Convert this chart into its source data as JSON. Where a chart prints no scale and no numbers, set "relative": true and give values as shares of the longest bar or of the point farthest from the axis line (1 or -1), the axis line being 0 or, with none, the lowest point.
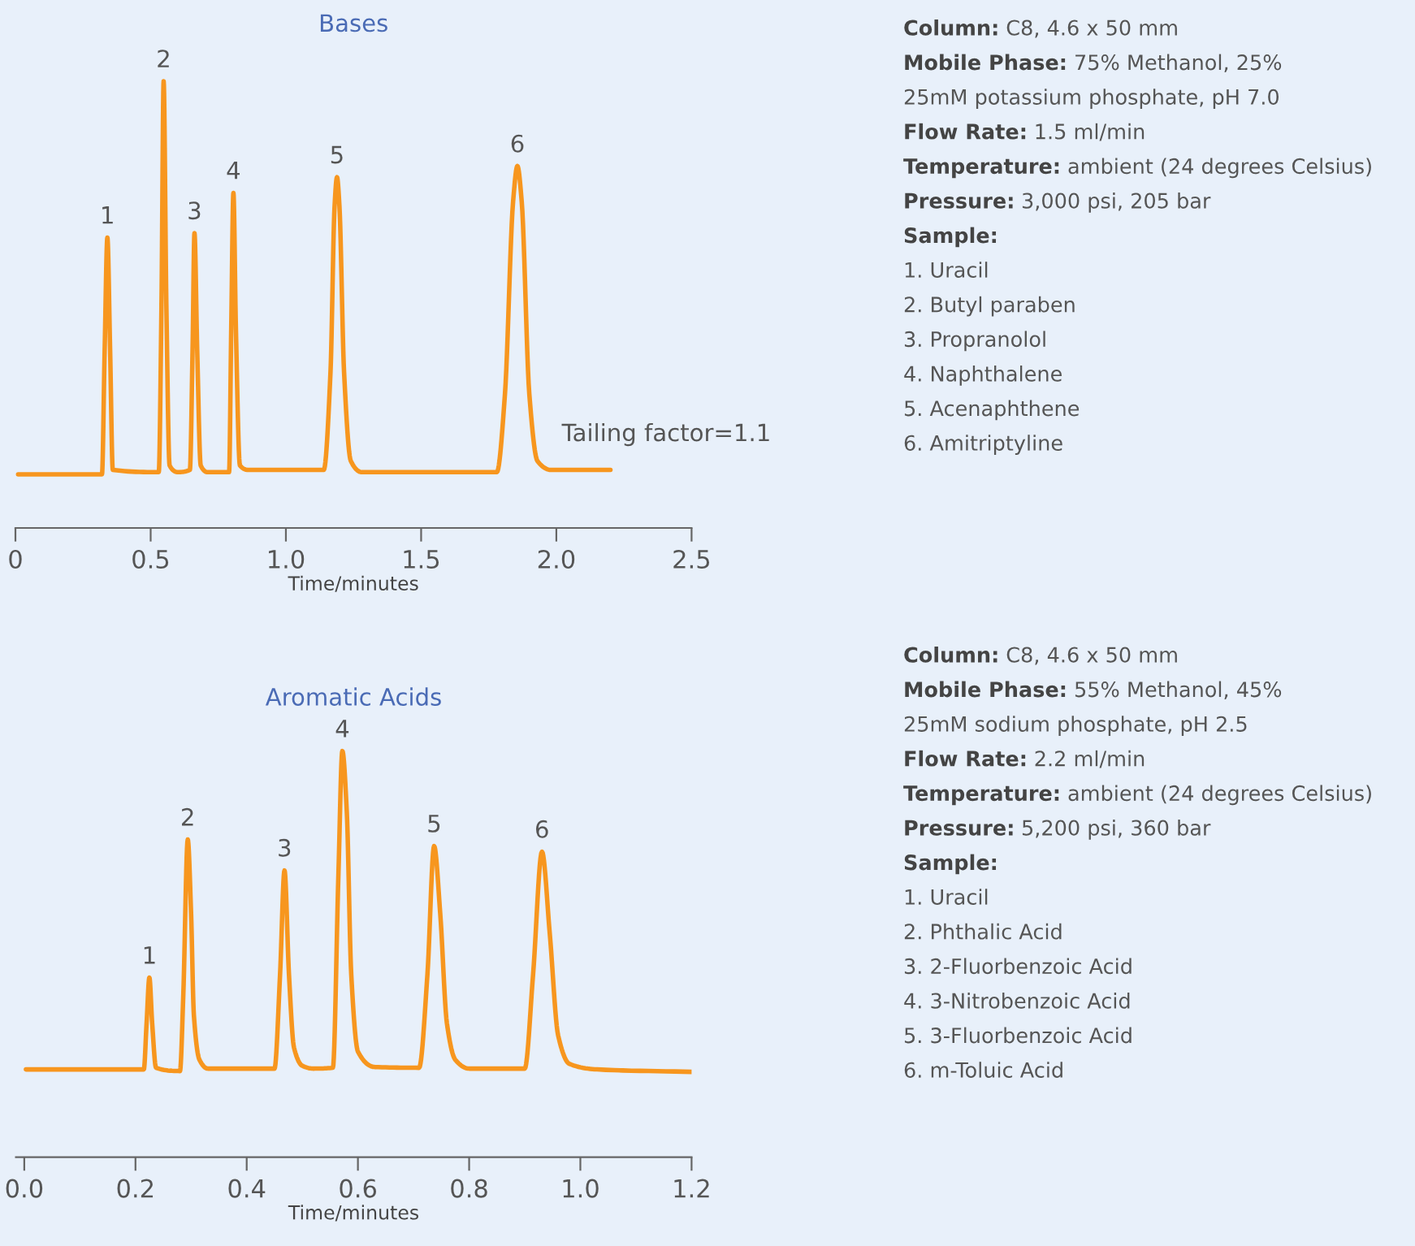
{
  "chart_data": [
    {
      "type": "line",
      "title": "Bases",
      "xlabel": "Time/minutes",
      "relative": true,
      "xlim": [
        0,
        2.5
      ],
      "xticks": [
        {
          "value": 0,
          "label": "0"
        },
        {
          "value": 0.5,
          "label": "0.5"
        },
        {
          "value": 1.0,
          "label": "1.0"
        },
        {
          "value": 1.5,
          "label": "1.5"
        },
        {
          "value": 2.0,
          "label": "2.0"
        },
        {
          "value": 2.5,
          "label": "2.5"
        }
      ],
      "series": [
        {
          "color": "#f7961e",
          "x": [
            0.01,
            0.32,
            0.33,
            0.34,
            0.35,
            0.36,
            0.53,
            0.54,
            0.548,
            0.558,
            0.57,
            0.6,
            0.645,
            0.655,
            0.662,
            0.672,
            0.685,
            0.71,
            0.79,
            0.798,
            0.806,
            0.815,
            0.83,
            0.86,
            1.14,
            1.165,
            1.18,
            1.189,
            1.198,
            1.215,
            1.24,
            1.28,
            1.78,
            1.81,
            1.84,
            1.856,
            1.872,
            1.9,
            1.93,
            1.98,
            2.2
          ],
          "values": [
            0.12,
            0.12,
            0.4,
            0.65,
            0.4,
            0.13,
            0.125,
            0.5,
            1.0,
            0.5,
            0.14,
            0.125,
            0.13,
            0.4,
            0.66,
            0.4,
            0.14,
            0.125,
            0.125,
            0.45,
            0.75,
            0.45,
            0.14,
            0.13,
            0.13,
            0.35,
            0.72,
            0.785,
            0.72,
            0.35,
            0.15,
            0.125,
            0.125,
            0.3,
            0.73,
            0.81,
            0.73,
            0.3,
            0.15,
            0.13,
            0.13
          ]
        }
      ],
      "annotations": [
        {
          "text": "1",
          "x": 0.34,
          "y": 0.65
        },
        {
          "text": "2",
          "x": 0.548,
          "y": 1.0
        },
        {
          "text": "3",
          "x": 0.662,
          "y": 0.66
        },
        {
          "text": "4",
          "x": 0.806,
          "y": 0.75
        },
        {
          "text": "5",
          "x": 1.189,
          "y": 0.785
        },
        {
          "text": "6",
          "x": 1.856,
          "y": 0.81
        },
        "Tailing factor=1.1"
      ]
    },
    {
      "type": "other",
      "annotations": [
        "Column: C8, 4.6 x 50 mm",
        "Mobile Phase: 75% Methanol, 25%",
        "25mM potassium phosphate, pH 7.0",
        "Flow Rate: 1.5 ml/min",
        "Temperature: ambient (24 degrees Celsius)",
        "Pressure: 3,000 psi, 205 bar",
        "Sample:",
        "1. Uracil",
        "2. Butyl paraben",
        "3. Propranolol",
        "4. Naphthalene",
        "5. Acenaphthene",
        "6. Amitriptyline"
      ]
    },
    {
      "type": "line",
      "title": "Aromatic Acids",
      "xlabel": "Time/minutes",
      "relative": true,
      "xlim": [
        -0.015,
        1.2
      ],
      "xticks": [
        {
          "value": 0.0,
          "label": "0.0"
        },
        {
          "value": 0.2,
          "label": "0.2"
        },
        {
          "value": 0.4,
          "label": "0.4"
        },
        {
          "value": 0.6,
          "label": "0.6"
        },
        {
          "value": 0.8,
          "label": "0.8"
        },
        {
          "value": 1.0,
          "label": "1.0"
        },
        {
          "value": 1.2,
          "label": "1.2"
        }
      ],
      "series": [
        {
          "color": "#f7961e",
          "x": [
            0.003,
            0.215,
            0.22,
            0.225,
            0.23,
            0.237,
            0.28,
            0.286,
            0.294,
            0.3,
            0.305,
            0.315,
            0.33,
            0.45,
            0.46,
            0.468,
            0.476,
            0.485,
            0.5,
            0.52,
            0.555,
            0.565,
            0.572,
            0.58,
            0.588,
            0.6,
            0.63,
            0.71,
            0.725,
            0.737,
            0.748,
            0.76,
            0.775,
            0.8,
            0.9,
            0.915,
            0.931,
            0.945,
            0.96,
            0.98,
            1.03,
            1.2
          ],
          "values": [
            0.216,
            0.216,
            0.33,
            0.442,
            0.33,
            0.22,
            0.212,
            0.4,
            0.782,
            0.6,
            0.35,
            0.24,
            0.218,
            0.218,
            0.45,
            0.706,
            0.45,
            0.27,
            0.225,
            0.218,
            0.22,
            0.7,
            1.0,
            0.85,
            0.45,
            0.26,
            0.222,
            0.22,
            0.45,
            0.766,
            0.6,
            0.33,
            0.24,
            0.218,
            0.218,
            0.45,
            0.752,
            0.55,
            0.3,
            0.23,
            0.216,
            0.21
          ]
        }
      ],
      "annotations": [
        {
          "text": "1",
          "x": 0.225,
          "y": 0.442
        },
        {
          "text": "2",
          "x": 0.294,
          "y": 0.782
        },
        {
          "text": "3",
          "x": 0.468,
          "y": 0.706
        },
        {
          "text": "4",
          "x": 0.572,
          "y": 1.0
        },
        {
          "text": "5",
          "x": 0.737,
          "y": 0.766
        },
        {
          "text": "6",
          "x": 0.931,
          "y": 0.752
        }
      ]
    },
    {
      "type": "other",
      "annotations": [
        "Column: C8, 4.6 x 50 mm",
        "Mobile Phase: 55% Methanol, 45%",
        "25mM sodium phosphate, pH 2.5",
        "Flow Rate: 2.2 ml/min",
        "Temperature: ambient (24 degrees Celsius)",
        "Pressure: 5,200 psi, 360 bar",
        "Sample:",
        "1. Uracil",
        "2. Phthalic Acid",
        "3. 2-Fluorbenzoic Acid",
        "4. 3-Nitrobenzoic Acid",
        "5. 3-Fluorbenzoic Acid",
        "6. m-Toluic Acid"
      ]
    }
  ]
}
